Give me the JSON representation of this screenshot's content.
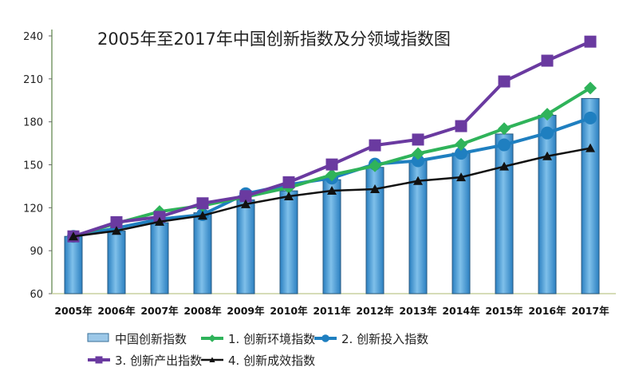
{
  "chart_data": {
    "type": "bar+line",
    "title": "2005年至2017年中国创新指数及分领域指数图",
    "xlabel": "",
    "ylabel": "",
    "ylim": [
      60,
      240
    ],
    "yticks": [
      60,
      90,
      120,
      150,
      180,
      210,
      240
    ],
    "grid": false,
    "legend_position": "bottom",
    "categories": [
      "2005年",
      "2006年",
      "2007年",
      "2008年",
      "2009年",
      "2010年",
      "2011年",
      "2012年",
      "2013年",
      "2014年",
      "2015年",
      "2016年",
      "2017年"
    ],
    "series": [
      {
        "name": "中国创新指数",
        "type": "bar",
        "color": "#4a9ad4",
        "values": [
          100,
          103.7,
          109.6,
          116.5,
          125.5,
          131.8,
          139.6,
          148.2,
          152.8,
          158.2,
          171.5,
          184.6,
          196.3
        ]
      },
      {
        "name": "1. 创新环境指数",
        "type": "line",
        "marker": "diamond",
        "color": "#2fb35a",
        "values": [
          100,
          109.1,
          117.3,
          121.5,
          127.6,
          134.1,
          142.9,
          149.3,
          157.8,
          164.3,
          175.2,
          185.3,
          203.6
        ]
      },
      {
        "name": "2. 创新投入指数",
        "type": "line",
        "marker": "circle",
        "color": "#1f7fc0",
        "values": [
          100,
          105.8,
          112.0,
          115.2,
          129.8,
          136.1,
          140.7,
          150.5,
          152.8,
          158.0,
          163.9,
          172.2,
          182.7
        ]
      },
      {
        "name": "3. 创新产出指数",
        "type": "line",
        "marker": "square",
        "color": "#6a3aa0",
        "values": [
          100,
          109.9,
          113.6,
          123.1,
          128.1,
          137.8,
          150.2,
          163.6,
          167.6,
          177.0,
          208.2,
          222.7,
          236.0
        ]
      },
      {
        "name": "4. 创新成效指数",
        "type": "line",
        "marker": "triangle",
        "color": "#111111",
        "values": [
          100,
          103.9,
          110.2,
          114.5,
          122.5,
          128.0,
          131.9,
          133.0,
          138.7,
          141.3,
          148.8,
          156.0,
          161.6
        ]
      }
    ]
  }
}
